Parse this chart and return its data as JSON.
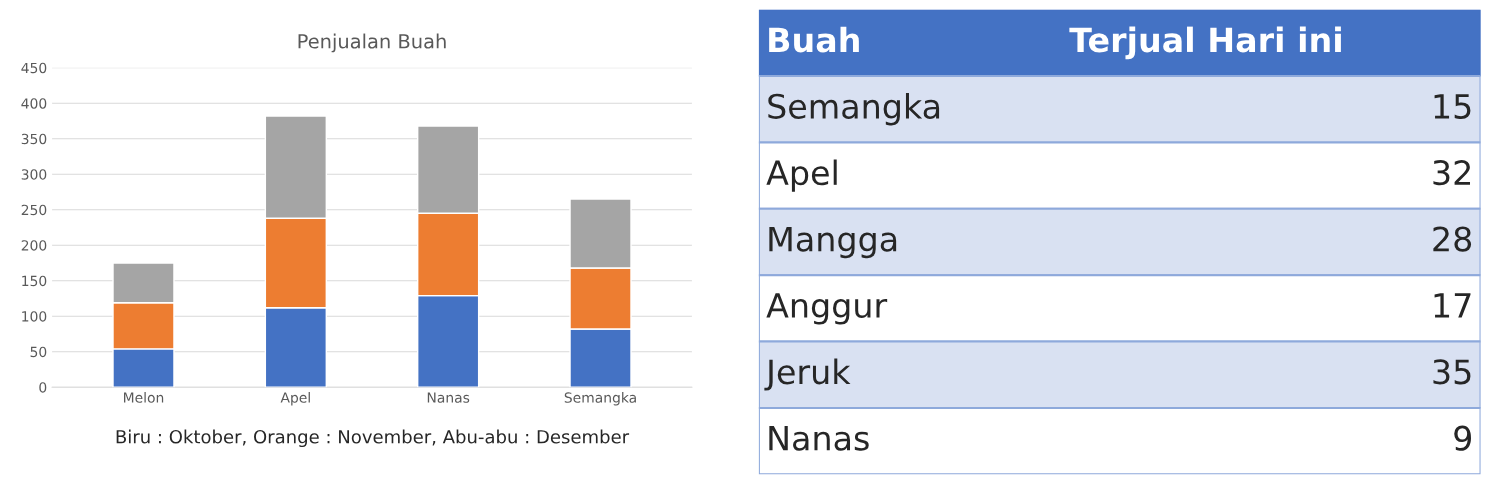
{
  "chart_data": [
    {
      "type": "bar",
      "title": "Penjualan Buah",
      "categories": [
        "Melon",
        "Apel",
        "Nanas",
        "Semangka"
      ],
      "stacked": true,
      "series": [
        {
          "color": "#4472c4",
          "values": [
            54,
            112,
            129,
            82
          ]
        },
        {
          "color": "#ed7d31",
          "values": [
            65,
            126,
            116,
            86
          ]
        },
        {
          "color": "#a5a5a5",
          "values": [
            56,
            144,
            123,
            97
          ]
        }
      ],
      "ylim": [
        0,
        450
      ],
      "yticks": [
        0,
        50,
        100,
        150,
        200,
        250,
        300,
        350,
        400,
        450
      ],
      "grid": "y",
      "annotations": [
        "Biru : Oktober, Orange : November, Abu-abu : Desember"
      ]
    },
    {
      "type": "other",
      "categories": [
        "Semangka",
        "Apel",
        "Mangga",
        "Anggur",
        "Jeruk",
        "Nanas"
      ],
      "values": [
        15,
        32,
        28,
        17,
        35,
        9
      ],
      "data_labels": true,
      "annotations": [
        "Buah",
        "Terjual Hari ini"
      ]
    }
  ]
}
